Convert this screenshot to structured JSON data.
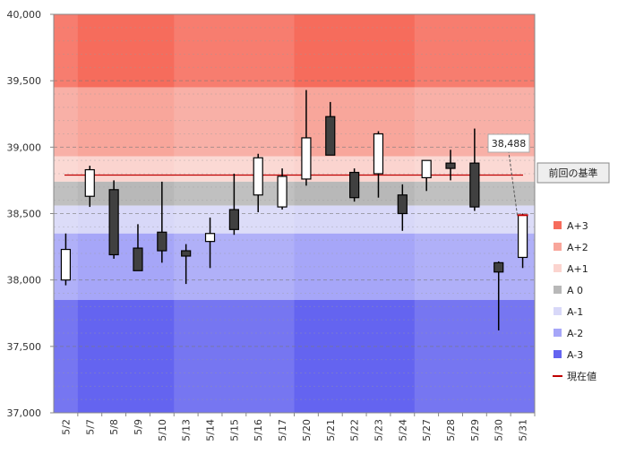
{
  "chart_data": {
    "type": "candlestick",
    "title": "",
    "xlabel": "",
    "ylabel": "",
    "ylim": [
      37000,
      40000
    ],
    "y_ticks": [
      "37,000",
      "37,500",
      "38,000",
      "38,500",
      "39,000",
      "39,500",
      "40,000"
    ],
    "categories": [
      "5/2",
      "5/7",
      "5/8",
      "5/9",
      "5/10",
      "5/13",
      "5/14",
      "5/15",
      "5/16",
      "5/17",
      "5/20",
      "5/21",
      "5/22",
      "5/23",
      "5/24",
      "5/27",
      "5/28",
      "5/29",
      "5/30",
      "5/31"
    ],
    "candles": [
      {
        "open": 38000,
        "close": 38230,
        "high": 38350,
        "low": 37960
      },
      {
        "open": 38630,
        "close": 38830,
        "high": 38860,
        "low": 38550
      },
      {
        "open": 38680,
        "close": 38190,
        "high": 38750,
        "low": 38160
      },
      {
        "open": 38240,
        "close": 38070,
        "high": 38420,
        "low": 38070
      },
      {
        "open": 38360,
        "close": 38220,
        "high": 38740,
        "low": 38130
      },
      {
        "open": 38220,
        "close": 38180,
        "high": 38270,
        "low": 37970
      },
      {
        "open": 38290,
        "close": 38350,
        "high": 38470,
        "low": 38090
      },
      {
        "open": 38530,
        "close": 38380,
        "high": 38800,
        "low": 38340
      },
      {
        "open": 38640,
        "close": 38920,
        "high": 38950,
        "low": 38510
      },
      {
        "open": 38550,
        "close": 38780,
        "high": 38840,
        "low": 38530
      },
      {
        "open": 38760,
        "close": 39070,
        "high": 39430,
        "low": 38710
      },
      {
        "open": 39230,
        "close": 38940,
        "high": 39340,
        "low": 38940
      },
      {
        "open": 38810,
        "close": 38620,
        "high": 38840,
        "low": 38590
      },
      {
        "open": 38800,
        "close": 39100,
        "high": 39120,
        "low": 38620
      },
      {
        "open": 38640,
        "close": 38500,
        "high": 38720,
        "low": 38370
      },
      {
        "open": 38770,
        "close": 38900,
        "high": 38900,
        "low": 38670
      },
      {
        "open": 38880,
        "close": 38840,
        "high": 38980,
        "low": 38750
      },
      {
        "open": 38880,
        "close": 38550,
        "high": 39140,
        "low": 38520
      },
      {
        "open": 38130,
        "close": 38060,
        "high": 38140,
        "low": 37620
      },
      {
        "open": 38170,
        "close": 38488,
        "high": 38500,
        "low": 38090
      }
    ],
    "zones": [
      {
        "name": "A+3",
        "from": 39450,
        "to": 40000,
        "color": "#f66c5c"
      },
      {
        "name": "A+2",
        "from": 38930,
        "to": 39450,
        "color": "#f8a69b"
      },
      {
        "name": "A+1",
        "from": 38740,
        "to": 38930,
        "color": "#fbd4cf"
      },
      {
        "name": "A 0",
        "from": 38560,
        "to": 38740,
        "color": "#b8b8b8"
      },
      {
        "name": "A-1",
        "from": 38350,
        "to": 38560,
        "color": "#d8d8f8"
      },
      {
        "name": "A-2",
        "from": 37850,
        "to": 38350,
        "color": "#a6a6f8"
      },
      {
        "name": "A-3",
        "from": 37000,
        "to": 37850,
        "color": "#6464f0"
      }
    ],
    "reference_value": 38790,
    "reference_label": "前回の基準",
    "current_value_label": "38,488",
    "legend_current_label": "現在値",
    "colors": {
      "up_body": "#ffffff",
      "down_body": "#404040",
      "wick": "#000000",
      "reference_line": "#c00000",
      "current_marker": "#c00000"
    },
    "grid": true,
    "legend_position": "right"
  }
}
